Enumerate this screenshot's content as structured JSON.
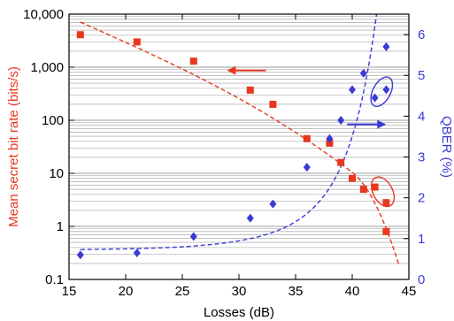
{
  "chart_data": {
    "type": "scatter",
    "xlabel": "Losses (dB)",
    "ylabel_left": "Mean secret bit rate (bits/s)",
    "ylabel_right": "QBER (%)",
    "xlim": [
      15,
      45
    ],
    "ylim_left": [
      0.1,
      10000
    ],
    "ylim_left_scale": "log",
    "ylim_right": [
      0,
      6.5
    ],
    "grid": "horizontal minor log gridlines",
    "x_ticks": [
      "15",
      "20",
      "25",
      "30",
      "35",
      "40",
      "45"
    ],
    "y_left_ticks": [
      "0.1",
      "1",
      "10",
      "100",
      "1,000",
      "10,000"
    ],
    "y_right_ticks": [
      "0",
      "1",
      "2",
      "3",
      "4",
      "5",
      "6"
    ],
    "colors": {
      "rate": "#e8371e",
      "qber": "#3a3ad6",
      "grid": "#9a9a9a"
    },
    "series": [
      {
        "axis": "left",
        "marker": "square",
        "color": "#e8371e",
        "x": [
          16,
          21,
          26,
          31,
          33,
          36,
          38,
          39,
          40,
          41,
          42,
          43,
          43
        ],
        "y": [
          4100,
          3000,
          1300,
          370,
          200,
          45,
          37,
          16,
          8,
          5,
          5.5,
          2.8,
          0.8
        ]
      },
      {
        "axis": "right",
        "marker": "diamond",
        "color": "#3a3ad6",
        "x": [
          16,
          21,
          26,
          31,
          33,
          36,
          38,
          39,
          40,
          41,
          42,
          43,
          43
        ],
        "y": [
          0.6,
          0.65,
          1.05,
          1.5,
          1.85,
          2.75,
          3.45,
          3.9,
          4.65,
          5.05,
          4.45,
          4.65,
          5.7
        ]
      }
    ],
    "fits": [
      {
        "axis": "left",
        "color": "#e8371e",
        "style": "dashed"
      },
      {
        "axis": "right",
        "color": "#3a3ad6",
        "style": "dashed"
      }
    ],
    "annotations": [
      {
        "type": "ellipse",
        "axis": "left",
        "color": "#e8371e",
        "x": 42.7,
        "y": 4.5
      },
      {
        "type": "ellipse",
        "axis": "right",
        "color": "#3a3ad6",
        "x": 42.6,
        "y": 4.6
      },
      {
        "type": "arrow",
        "direction": "left",
        "color": "#e8371e",
        "x": 30.5,
        "y_axis_value": 870
      },
      {
        "type": "arrow",
        "direction": "right",
        "color": "#3a3ad6",
        "x": 40.8,
        "y_axis_value": 3.8
      }
    ]
  }
}
